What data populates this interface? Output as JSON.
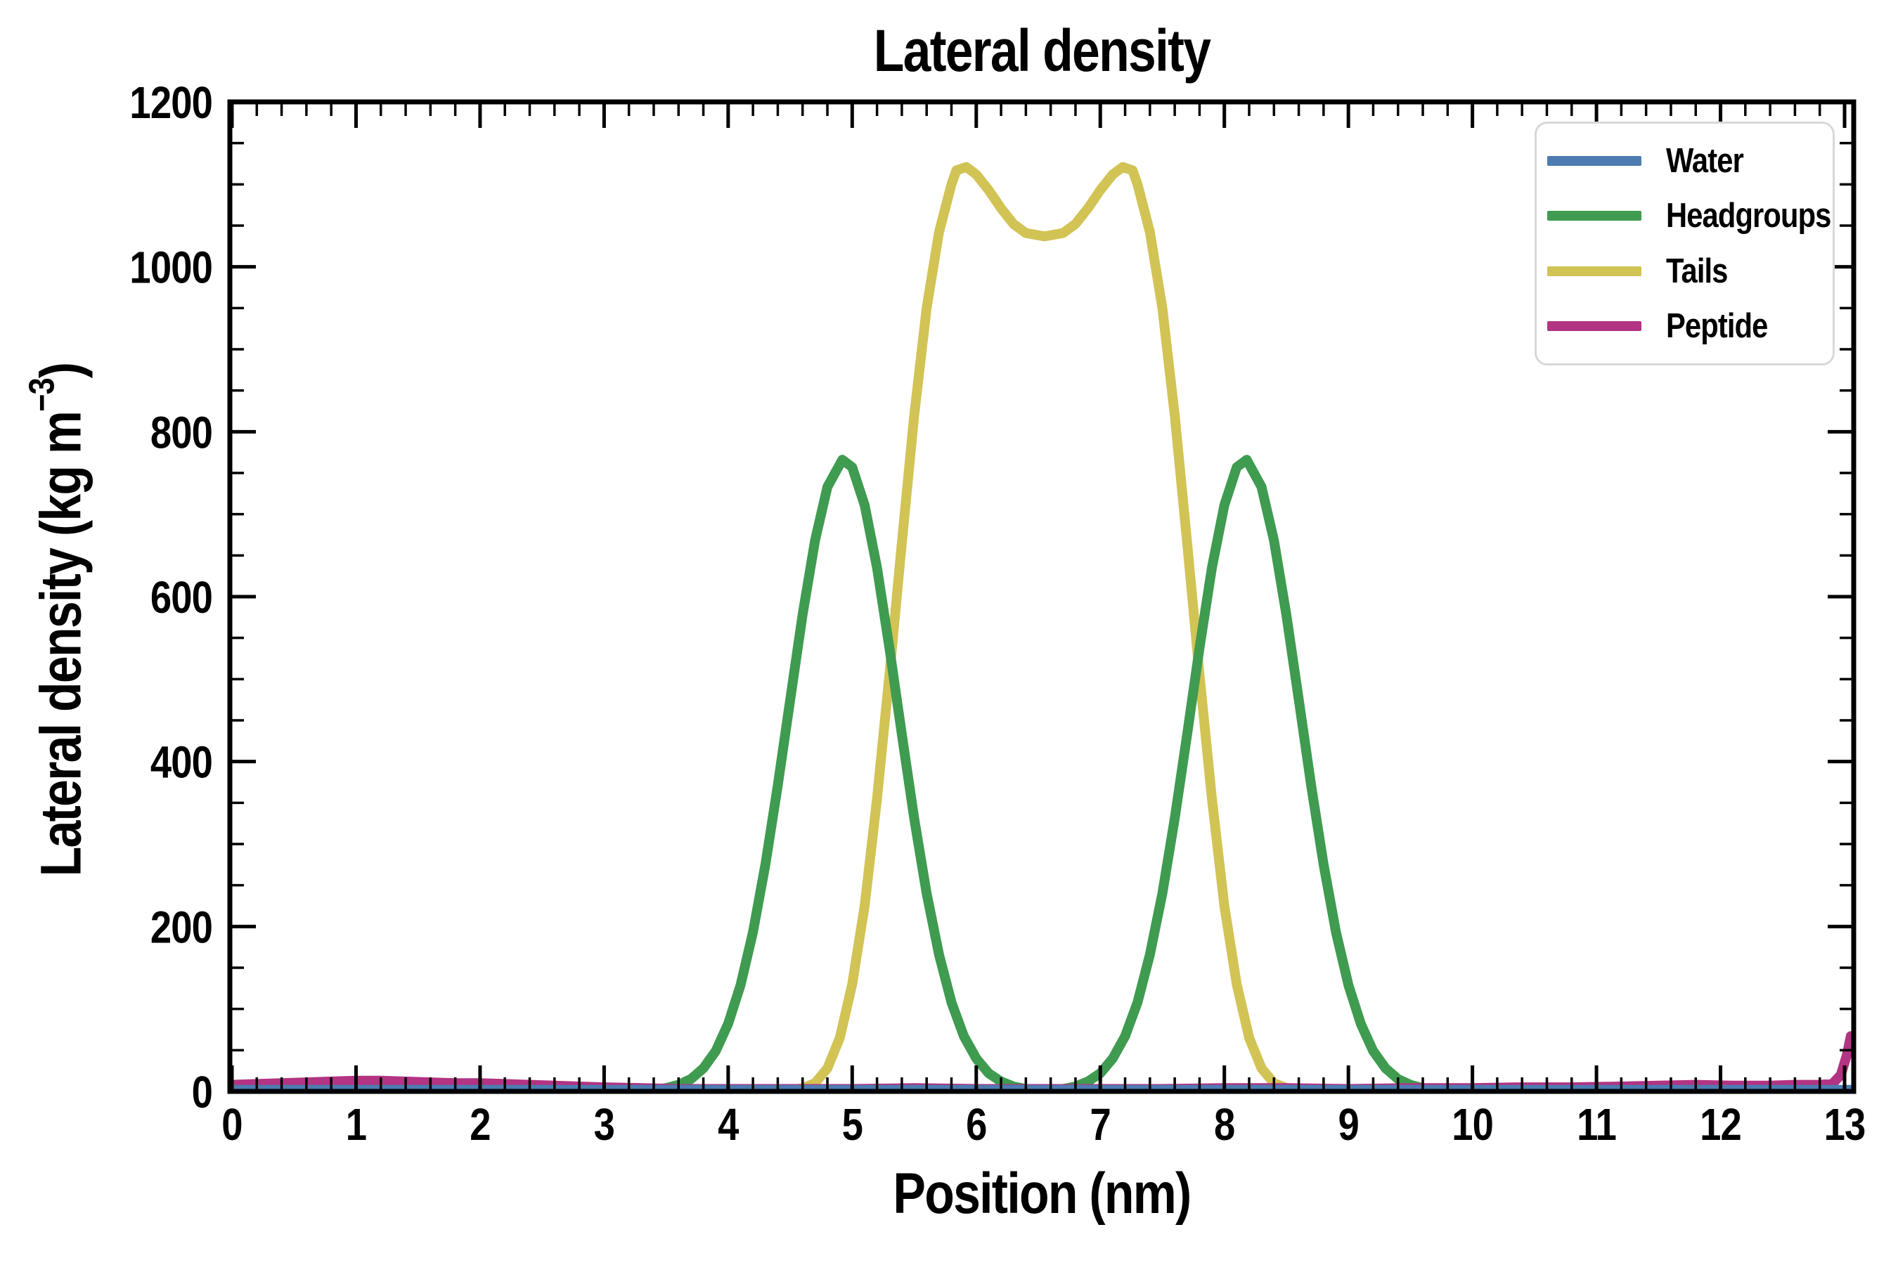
{
  "figure": {
    "title": "Lateral density",
    "xlabel": "Position (nm)",
    "ylabel_prefix": "Lateral density (kg m",
    "ylabel_sup": "−3",
    "ylabel_suffix": ")"
  },
  "legend": {
    "position": "upper right",
    "items": [
      {
        "label": "Water",
        "color": "#4c7cb2"
      },
      {
        "label": "Headgroups",
        "color": "#3f9b50"
      },
      {
        "label": "Tails",
        "color": "#d2c355"
      },
      {
        "label": "Peptide",
        "color": "#b23483"
      }
    ]
  },
  "style": {
    "background": "#ffffff",
    "frame_color": "#000000",
    "text_color": "#000000",
    "legend_border_color": "#d8d8d8",
    "curve_linewidth": 14,
    "frame_linewidth": 7,
    "tick_major_len": 34,
    "tick_minor_len": 17
  },
  "chart_data": {
    "type": "line",
    "title": "Lateral density",
    "xlabel": "Position (nm)",
    "ylabel": "Lateral density (kg m^-3)",
    "xlim": [
      0,
      13.07
    ],
    "ylim": [
      0,
      1200
    ],
    "grid": false,
    "legend_position": "upper right",
    "x_major_ticks": [
      0,
      1,
      2,
      3,
      4,
      5,
      6,
      7,
      8,
      9,
      10,
      11,
      12,
      13
    ],
    "y_major_ticks": [
      0,
      200,
      400,
      600,
      800,
      1000,
      1200
    ],
    "x_minor_step": 0.2,
    "y_minor_step": 50,
    "draw_order": [
      "Tails",
      "Headgroups",
      "Peptide",
      "Water"
    ],
    "series": [
      {
        "name": "Water",
        "color": "#4c7cb2",
        "points": [
          [
            0,
            2
          ],
          [
            1,
            2
          ],
          [
            2,
            2
          ],
          [
            3,
            2
          ],
          [
            4,
            2
          ],
          [
            5,
            2
          ],
          [
            6,
            2
          ],
          [
            7,
            2
          ],
          [
            8,
            2
          ],
          [
            9,
            2
          ],
          [
            10,
            2
          ],
          [
            11,
            2
          ],
          [
            12,
            2
          ],
          [
            13,
            2
          ],
          [
            13.07,
            2
          ]
        ]
      },
      {
        "name": "Headgroups",
        "color": "#3f9b50",
        "points": [
          [
            0,
            0
          ],
          [
            1,
            0
          ],
          [
            2,
            0
          ],
          [
            2.8,
            0
          ],
          [
            3.1,
            0
          ],
          [
            3.3,
            1
          ],
          [
            3.4,
            2
          ],
          [
            3.5,
            4
          ],
          [
            3.6,
            8
          ],
          [
            3.7,
            15
          ],
          [
            3.8,
            28
          ],
          [
            3.9,
            49
          ],
          [
            4.0,
            82
          ],
          [
            4.1,
            129
          ],
          [
            4.2,
            193
          ],
          [
            4.3,
            275
          ],
          [
            4.4,
            371
          ],
          [
            4.5,
            475
          ],
          [
            4.6,
            578
          ],
          [
            4.7,
            668
          ],
          [
            4.8,
            733
          ],
          [
            4.92,
            766
          ],
          [
            5.0,
            757
          ],
          [
            5.1,
            711
          ],
          [
            5.2,
            635
          ],
          [
            5.3,
            538
          ],
          [
            5.4,
            433
          ],
          [
            5.5,
            331
          ],
          [
            5.6,
            240
          ],
          [
            5.7,
            166
          ],
          [
            5.8,
            108
          ],
          [
            5.9,
            67
          ],
          [
            6.0,
            40
          ],
          [
            6.1,
            22
          ],
          [
            6.2,
            12
          ],
          [
            6.3,
            6
          ],
          [
            6.4,
            3
          ],
          [
            6.55,
            2
          ],
          [
            6.7,
            3
          ],
          [
            6.8,
            6
          ],
          [
            6.9,
            12
          ],
          [
            7.0,
            22
          ],
          [
            7.1,
            40
          ],
          [
            7.2,
            67
          ],
          [
            7.3,
            108
          ],
          [
            7.4,
            166
          ],
          [
            7.5,
            240
          ],
          [
            7.6,
            331
          ],
          [
            7.7,
            433
          ],
          [
            7.8,
            538
          ],
          [
            7.9,
            635
          ],
          [
            8.0,
            711
          ],
          [
            8.1,
            757
          ],
          [
            8.18,
            766
          ],
          [
            8.3,
            733
          ],
          [
            8.4,
            668
          ],
          [
            8.5,
            578
          ],
          [
            8.6,
            475
          ],
          [
            8.7,
            371
          ],
          [
            8.8,
            275
          ],
          [
            8.9,
            193
          ],
          [
            9.0,
            129
          ],
          [
            9.1,
            82
          ],
          [
            9.2,
            49
          ],
          [
            9.3,
            28
          ],
          [
            9.4,
            15
          ],
          [
            9.5,
            8
          ],
          [
            9.6,
            4
          ],
          [
            9.7,
            2
          ],
          [
            9.8,
            1
          ],
          [
            10,
            0
          ],
          [
            11,
            0
          ],
          [
            12,
            0
          ],
          [
            13,
            0
          ],
          [
            13.07,
            0
          ]
        ]
      },
      {
        "name": "Tails",
        "color": "#d2c355",
        "points": [
          [
            0,
            0
          ],
          [
            1,
            0
          ],
          [
            2,
            0
          ],
          [
            3,
            0
          ],
          [
            3.5,
            0
          ],
          [
            4,
            0
          ],
          [
            4.3,
            0
          ],
          [
            4.5,
            1
          ],
          [
            4.6,
            4
          ],
          [
            4.7,
            10
          ],
          [
            4.8,
            28
          ],
          [
            4.9,
            65
          ],
          [
            5.0,
            130
          ],
          [
            5.1,
            225
          ],
          [
            5.2,
            355
          ],
          [
            5.3,
            505
          ],
          [
            5.4,
            665
          ],
          [
            5.5,
            820
          ],
          [
            5.6,
            950
          ],
          [
            5.7,
            1042
          ],
          [
            5.8,
            1100
          ],
          [
            5.84,
            1117
          ],
          [
            5.92,
            1121
          ],
          [
            6.0,
            1112
          ],
          [
            6.1,
            1093
          ],
          [
            6.2,
            1071
          ],
          [
            6.3,
            1052
          ],
          [
            6.4,
            1041
          ],
          [
            6.55,
            1037
          ],
          [
            6.7,
            1041
          ],
          [
            6.8,
            1052
          ],
          [
            6.9,
            1071
          ],
          [
            7.0,
            1093
          ],
          [
            7.1,
            1112
          ],
          [
            7.18,
            1121
          ],
          [
            7.26,
            1117
          ],
          [
            7.3,
            1100
          ],
          [
            7.4,
            1042
          ],
          [
            7.5,
            950
          ],
          [
            7.6,
            820
          ],
          [
            7.7,
            665
          ],
          [
            7.8,
            505
          ],
          [
            7.9,
            355
          ],
          [
            8.0,
            225
          ],
          [
            8.1,
            130
          ],
          [
            8.2,
            65
          ],
          [
            8.3,
            28
          ],
          [
            8.4,
            10
          ],
          [
            8.5,
            4
          ],
          [
            8.6,
            1
          ],
          [
            8.8,
            0
          ],
          [
            9,
            0
          ],
          [
            10,
            0
          ],
          [
            11,
            0
          ],
          [
            12,
            0
          ],
          [
            13,
            0
          ],
          [
            13.07,
            0
          ]
        ]
      },
      {
        "name": "Peptide",
        "color": "#b23483",
        "points": [
          [
            0,
            8
          ],
          [
            0.2,
            9
          ],
          [
            0.4,
            10
          ],
          [
            0.6,
            11
          ],
          [
            0.8,
            12
          ],
          [
            1.0,
            13
          ],
          [
            1.2,
            13
          ],
          [
            1.4,
            12
          ],
          [
            1.6,
            11
          ],
          [
            1.8,
            10
          ],
          [
            2.0,
            10
          ],
          [
            2.2,
            9
          ],
          [
            2.4,
            8
          ],
          [
            2.6,
            7
          ],
          [
            2.8,
            6
          ],
          [
            3.0,
            5
          ],
          [
            3.3,
            4
          ],
          [
            3.6,
            3
          ],
          [
            4.0,
            3
          ],
          [
            4.5,
            3
          ],
          [
            5.0,
            3
          ],
          [
            5.5,
            4
          ],
          [
            6.0,
            3
          ],
          [
            6.5,
            3
          ],
          [
            7.0,
            3
          ],
          [
            7.5,
            3
          ],
          [
            8.0,
            4
          ],
          [
            8.5,
            4
          ],
          [
            9.0,
            3
          ],
          [
            9.5,
            4
          ],
          [
            10.0,
            4
          ],
          [
            10.4,
            5
          ],
          [
            10.8,
            5
          ],
          [
            11.2,
            6
          ],
          [
            11.5,
            7
          ],
          [
            11.8,
            8
          ],
          [
            12.1,
            7
          ],
          [
            12.4,
            7
          ],
          [
            12.6,
            8
          ],
          [
            12.8,
            8
          ],
          [
            12.9,
            9
          ],
          [
            12.97,
            20
          ],
          [
            13.02,
            45
          ],
          [
            13.05,
            67
          ]
        ]
      }
    ]
  }
}
